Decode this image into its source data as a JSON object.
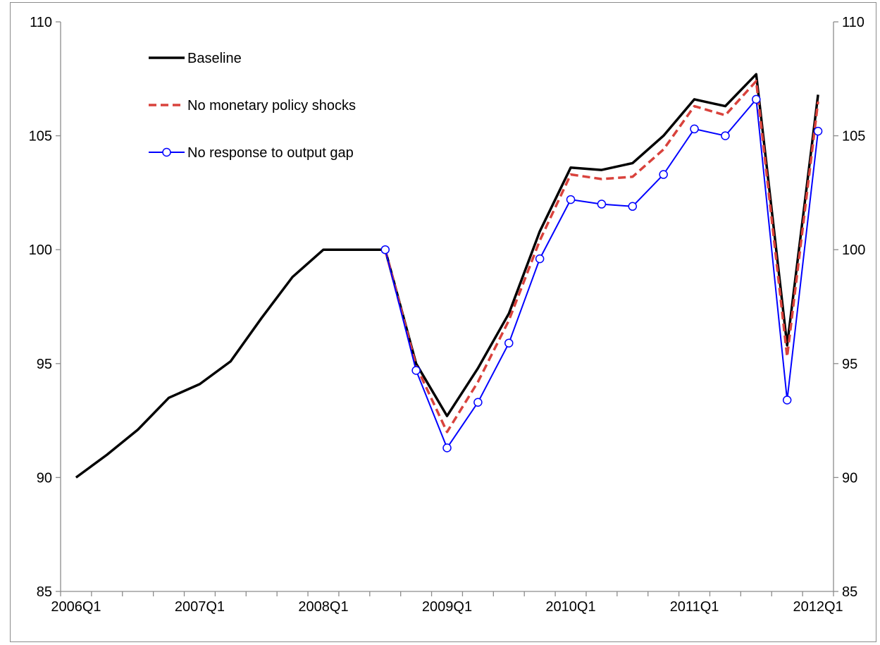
{
  "chart_data": {
    "type": "line",
    "x_tick_labels": [
      "2006Q1",
      "2007Q1",
      "2008Q1",
      "2009Q1",
      "2010Q1",
      "2011Q1",
      "2012Q1"
    ],
    "y_left_ticks": [
      "85",
      "90",
      "95",
      "100",
      "105",
      "110"
    ],
    "y_right_ticks": [
      "85",
      "90",
      "95",
      "100",
      "105",
      "110"
    ],
    "ylim": [
      85,
      110
    ],
    "x": [
      "2006Q1",
      "2006Q2",
      "2006Q3",
      "2006Q4",
      "2007Q1",
      "2007Q2",
      "2007Q3",
      "2007Q4",
      "2008Q1",
      "2008Q2",
      "2008Q3",
      "2008Q4",
      "2009Q1",
      "2009Q2",
      "2009Q3",
      "2009Q4",
      "2010Q1",
      "2010Q2",
      "2010Q3",
      "2010Q4",
      "2011Q1",
      "2011Q2",
      "2011Q3",
      "2011Q4",
      "2012Q1"
    ],
    "legend_position": "top-left",
    "grid": false,
    "series": [
      {
        "name": "Baseline",
        "color": "#000000",
        "style": "solid",
        "values": [
          90.0,
          91.0,
          92.1,
          93.5,
          94.1,
          95.1,
          97.0,
          98.8,
          100.0,
          100.0,
          100.0,
          95.0,
          92.7,
          94.8,
          97.2,
          100.8,
          103.6,
          103.5,
          103.8,
          105.0,
          106.6,
          106.3,
          107.7,
          95.8,
          106.8
        ]
      },
      {
        "name": "No monetary policy shocks",
        "color": "#d9423c",
        "style": "dashed",
        "values": [
          null,
          null,
          null,
          null,
          null,
          null,
          null,
          null,
          null,
          null,
          100.0,
          94.9,
          92.0,
          94.2,
          96.9,
          100.4,
          103.3,
          103.1,
          103.2,
          104.4,
          106.3,
          105.9,
          107.4,
          95.3,
          106.5
        ]
      },
      {
        "name": "No response to output gap",
        "color": "#0000ff",
        "style": "solid-with-circle-markers",
        "values": [
          null,
          null,
          null,
          null,
          null,
          null,
          null,
          null,
          null,
          null,
          100.0,
          94.7,
          91.3,
          93.3,
          95.9,
          99.6,
          102.2,
          102.0,
          101.9,
          103.3,
          105.3,
          105.0,
          106.6,
          93.4,
          105.2
        ]
      }
    ]
  }
}
